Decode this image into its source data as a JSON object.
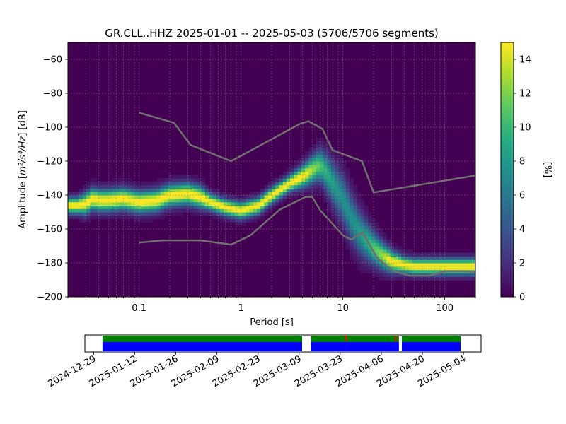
{
  "chart_data": [
    {
      "type": "heatmap",
      "title": "GR.CLL..HHZ   2025-01-01 -- 2025-05-03  (5706/5706 segments)",
      "xlabel": "Period [s]",
      "ylabel_prefix": "Amplitude [",
      "ylabel_unit_math": "m²/s⁴/Hz",
      "ylabel_suffix": "] [dB]",
      "x_scale": "log",
      "xlim": [
        0.02,
        200
      ],
      "ylim": [
        -200,
        -50
      ],
      "x_ticks": [
        {
          "value": 0.1,
          "label": "0.1"
        },
        {
          "value": 1,
          "label": "1"
        },
        {
          "value": 10,
          "label": "10"
        },
        {
          "value": 100,
          "label": "100"
        }
      ],
      "y_ticks": [
        {
          "value": -60,
          "label": "−60"
        },
        {
          "value": -80,
          "label": "−80"
        },
        {
          "value": -100,
          "label": "−100"
        },
        {
          "value": -120,
          "label": "−120"
        },
        {
          "value": -140,
          "label": "−140"
        },
        {
          "value": -160,
          "label": "−160"
        },
        {
          "value": -180,
          "label": "−180"
        },
        {
          "value": -200,
          "label": "−200"
        }
      ],
      "grid": true,
      "colormap": "viridis",
      "colorbar": {
        "label": "[%]",
        "range": [
          0,
          15
        ],
        "ticks": [
          {
            "value": 0,
            "label": "0"
          },
          {
            "value": 2,
            "label": "2"
          },
          {
            "value": 4,
            "label": "4"
          },
          {
            "value": 6,
            "label": "6"
          },
          {
            "value": 8,
            "label": "8"
          },
          {
            "value": 10,
            "label": "10"
          },
          {
            "value": 12,
            "label": "12"
          },
          {
            "value": 14,
            "label": "14"
          }
        ]
      },
      "mode_curve": {
        "period": [
          0.02,
          0.025,
          0.03,
          0.035,
          0.04,
          0.05,
          0.07,
          0.1,
          0.15,
          0.2,
          0.3,
          0.4,
          0.5,
          0.7,
          1.0,
          1.5,
          2.0,
          3.0,
          4.0,
          5.0,
          6.0,
          7.0,
          8.0,
          10,
          12,
          15,
          20,
          25,
          30,
          40,
          50,
          70,
          100,
          150,
          200
        ],
        "db": [
          -146,
          -146,
          -145,
          -142,
          -143,
          -143,
          -142,
          -144,
          -143,
          -140,
          -139,
          -141,
          -144,
          -147,
          -149,
          -146,
          -140,
          -133,
          -129,
          -125,
          -122,
          -127,
          -133,
          -142,
          -153,
          -163,
          -171,
          -176,
          -179,
          -181,
          -182,
          -182,
          -182,
          -182,
          -182
        ],
        "spread_db": [
          3,
          3,
          4,
          4,
          4,
          4,
          4,
          4,
          4,
          4,
          4,
          4,
          3,
          3,
          3,
          3,
          3,
          3,
          4,
          5,
          6,
          7,
          8,
          9,
          9,
          8,
          6,
          5,
          4,
          3,
          3,
          3,
          3,
          3,
          3
        ]
      },
      "nhnm": {
        "period": [
          0.1,
          0.17,
          0.4,
          0.8,
          1.24,
          2.4,
          4.3,
          5.0,
          6.0,
          10.0,
          12.0,
          15.6,
          21.9,
          31.6,
          45.0,
          70.0,
          101.0,
          154.0,
          200
        ],
        "db": [
          -168,
          -166.7,
          -166.7,
          -169.2,
          -163.7,
          -148.6,
          -141.1,
          -141.1,
          -149.0,
          -163.8,
          -166.2,
          -162.1,
          -177.5,
          -185.0,
          -187.5,
          -187.5,
          -185.0,
          -185.0,
          -185.5
        ]
      },
      "nlnm": {
        "period": [
          0.1,
          0.22,
          0.32,
          0.8,
          3.8,
          4.6,
          6.3,
          7.9,
          15.4,
          20.0,
          200
        ],
        "db": [
          -91.5,
          -97.4,
          -110.5,
          -120.0,
          -98.0,
          -96.5,
          -101.0,
          -113.5,
          -120.0,
          -138.5,
          -128.5
        ]
      }
    },
    {
      "type": "timeline",
      "x_ticks": [
        "2024-12-29",
        "2025-01-12",
        "2025-01-26",
        "2025-02-09",
        "2025-02-23",
        "2025-03-09",
        "2025-03-23",
        "2025-04-06",
        "2025-04-20",
        "2025-05-04"
      ],
      "xlim": [
        "2024-12-26",
        "2025-05-10"
      ],
      "data_segments": [
        {
          "start": "2025-01-01",
          "end": "2025-03-10"
        },
        {
          "start": "2025-03-13",
          "end": "2025-04-12"
        },
        {
          "start": "2025-04-13",
          "end": "2025-05-03"
        }
      ],
      "psd_segments": [
        {
          "start": "2025-01-01",
          "end": "2025-03-10"
        },
        {
          "start": "2025-03-13",
          "end": "2025-04-12"
        },
        {
          "start": "2025-04-13",
          "end": "2025-05-03"
        }
      ],
      "gap_markers": [
        "2025-03-25",
        "2025-04-11"
      ],
      "colors": {
        "data": "#0000ff",
        "psd": "#008000",
        "gap": "#ff0000"
      }
    }
  ]
}
